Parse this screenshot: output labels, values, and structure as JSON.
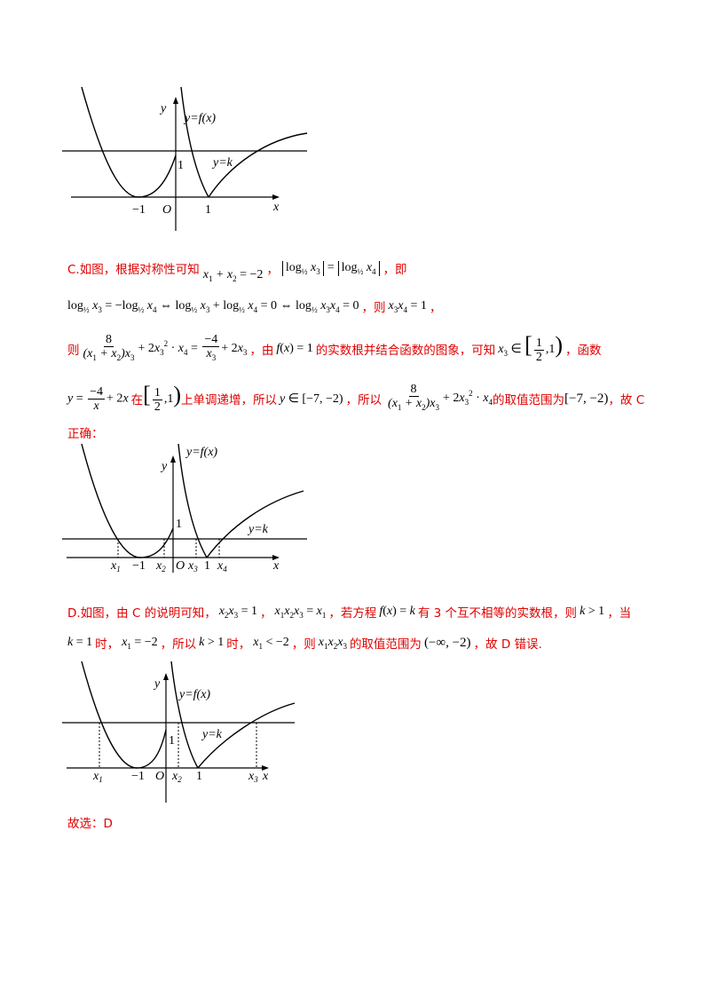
{
  "figure1": {
    "y_axis": "y",
    "x_axis": "x",
    "origin": "O",
    "curve_label": "y=f(x)",
    "line_label": "y=k",
    "tick_m1": "−1",
    "tick_1": "1",
    "y_tick_1": "1"
  },
  "sectionC": {
    "intro": "C.如图，根据对称性可知",
    "sep1": "，",
    "sep2": "，即",
    "then": "，则",
    "then2": "，",
    "line3_prefix": "则",
    "line3_mid": "，由",
    "line3_mid2": "的实数根并结合函数的图象，可知",
    "line3_end": "，函数",
    "line4_a": "在",
    "line4_b": "上单调递增，所以",
    "line4_c": "，所以",
    "line4_d": "的取值范围为",
    "line4_e": "，故 C",
    "line5": "正确："
  },
  "figure2": {
    "y_axis": "y",
    "x_axis": "x",
    "origin": "O",
    "curve_label": "y=f(x)",
    "line_label": "y=k",
    "tick_m1": "−1",
    "tick_1": "1",
    "y_tick_1": "1",
    "x1": "x",
    "x2": "x",
    "x3": "x",
    "x4": "x",
    "s1": "1",
    "s2": "2",
    "s3": "3",
    "s4": "4"
  },
  "sectionD": {
    "intro": "D.如图，由 C 的说明可知，",
    "a": "，",
    "b": "，若方程",
    "c": "有 3 个互不相等的实数根，则",
    "d": "，当",
    "e": "时，",
    "f": "，所以",
    "g": "时，",
    "h": "，则",
    "i": "的取值范围为",
    "j": "，故 D 错误."
  },
  "figure3": {
    "y_axis": "y",
    "x_axis": "x",
    "origin": "O",
    "curve_label": "y=f(x)",
    "line_label": "y=k",
    "tick_m1": "−1",
    "tick_1": "1",
    "y_tick_1": "1",
    "x1": "x",
    "x2": "x",
    "x3": "x",
    "s1": "1",
    "s2": "2",
    "s3": "3"
  },
  "answer": "故选：D"
}
